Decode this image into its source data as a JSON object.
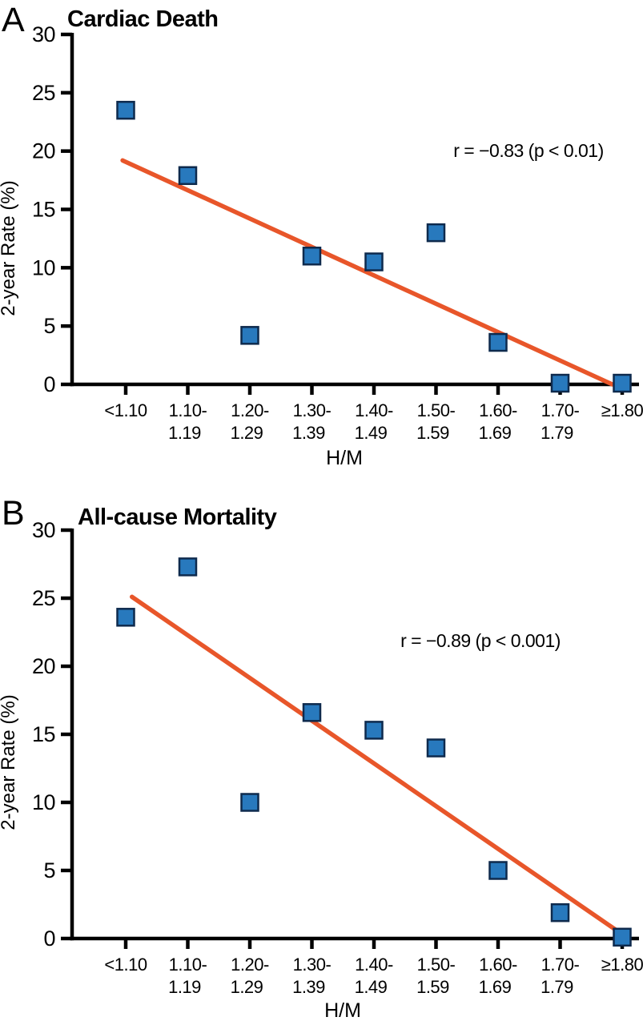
{
  "page": {
    "background": "#ffffff"
  },
  "colors": {
    "marker_fill": "#2879bd",
    "marker_stroke": "#0e2a4d",
    "trendline": "#e8562a",
    "axis": "#000000",
    "text": "#000000"
  },
  "chart_data": [
    {
      "type": "scatter",
      "panel_label": "A",
      "title": "Cardiac Death",
      "xlabel": "H/M",
      "ylabel": "2-year Rate (%)",
      "annotation": "r = −0.83 (p < 0.01)",
      "ylim": [
        0,
        30
      ],
      "yticks": [
        0,
        5,
        10,
        15,
        20,
        25,
        30
      ],
      "categories": [
        "<1.10",
        "1.10-1.19",
        "1.20-1.29",
        "1.30-1.39",
        "1.40-1.49",
        "1.50-1.59",
        "1.60-1.69",
        "1.70-1.79",
        "≥1.80"
      ],
      "category_labels": [
        [
          "<1.10",
          ""
        ],
        [
          "1.10-",
          "1.19"
        ],
        [
          "1.20-",
          "1.29"
        ],
        [
          "1.30-",
          "1.39"
        ],
        [
          "1.40-",
          "1.49"
        ],
        [
          "1.50-",
          "1.59"
        ],
        [
          "1.60-",
          "1.69"
        ],
        [
          "1.70-",
          "1.79"
        ],
        [
          "≥1.80",
          ""
        ]
      ],
      "values": [
        23.5,
        17.9,
        4.2,
        11.0,
        10.5,
        13.0,
        3.6,
        0.1,
        0.1
      ],
      "trendline": {
        "x1_index": -0.05,
        "y1": 19.2,
        "x2_index": 7.84,
        "y2": 0
      },
      "grid": false,
      "legend": "none"
    },
    {
      "type": "scatter",
      "panel_label": "B",
      "title": "All-cause Mortality",
      "xlabel": "H/M",
      "ylabel": "2-year Rate (%)",
      "annotation": "r = −0.89 (p < 0.001)",
      "ylim": [
        0,
        30
      ],
      "yticks": [
        0,
        5,
        10,
        15,
        20,
        25,
        30
      ],
      "categories": [
        "<1.10",
        "1.10-1.19",
        "1.20-1.29",
        "1.30-1.39",
        "1.40-1.49",
        "1.50-1.59",
        "1.60-1.69",
        "1.70-1.79",
        "≥1.80"
      ],
      "category_labels": [
        [
          "<1.10",
          ""
        ],
        [
          "1.10-",
          "1.19"
        ],
        [
          "1.20-",
          "1.29"
        ],
        [
          "1.30-",
          "1.39"
        ],
        [
          "1.40-",
          "1.49"
        ],
        [
          "1.50-",
          "1.59"
        ],
        [
          "1.60-",
          "1.69"
        ],
        [
          "1.70-",
          "1.79"
        ],
        [
          "≥1.80",
          ""
        ]
      ],
      "values": [
        23.6,
        27.3,
        10.0,
        16.6,
        15.3,
        14.0,
        5.0,
        1.9,
        0.1
      ],
      "trendline": {
        "x1_index": 0.1,
        "y1": 25.1,
        "x2_index": 8.1,
        "y2": 0
      },
      "grid": false,
      "legend": "none"
    }
  ]
}
